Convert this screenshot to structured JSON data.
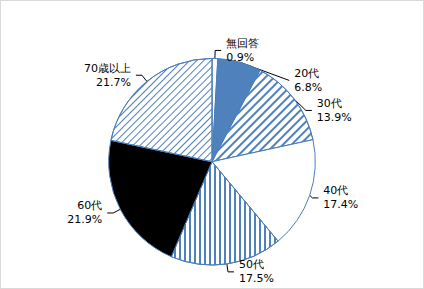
{
  "chart_data": {
    "type": "pie",
    "categories": [
      "無回答",
      "20代",
      "30代",
      "40代",
      "50代",
      "60代",
      "70歳以上"
    ],
    "values": [
      0.9,
      6.8,
      13.9,
      17.4,
      17.5,
      21.9,
      21.7
    ],
    "value_labels": [
      "0.9%",
      "6.8%",
      "13.9%",
      "17.4%",
      "17.5%",
      "21.9%",
      "21.7%"
    ],
    "colors": [
      "#ffffff",
      "#4f81bd",
      "#ffffff",
      "#ffffff",
      "#ffffff",
      "#000000",
      "#ffffff"
    ],
    "data_labels": true
  }
}
